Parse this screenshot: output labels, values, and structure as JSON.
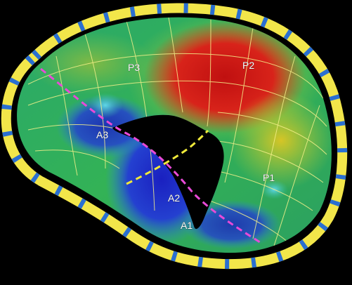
{
  "labels": {
    "p3": "P3",
    "p2": "P2",
    "p1": "P1",
    "a3": "A3",
    "a2": "A2",
    "a1": "A1"
  },
  "colors": {
    "background": "#000000",
    "annulus_ring": "#f2e64a",
    "ring_marker": "#2a6fd1",
    "mesh": "#f4f08a",
    "commissure_line": "#e84ad8",
    "coaptation_line": "#f0ea3a",
    "high_region": "#d81d1d",
    "mid_region": "#2fb25a",
    "low_region": "#1d35c8"
  }
}
